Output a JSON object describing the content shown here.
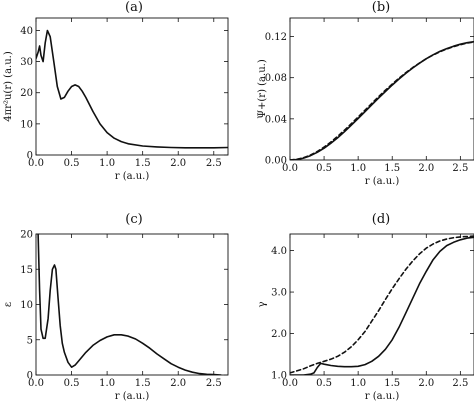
{
  "chart_data": [
    {
      "type": "line",
      "panel": "(a)",
      "title": "(a)",
      "xlabel": "r (a.u.)",
      "ylabel": "4πr²u(r) (a.u.)",
      "xlim": [
        0,
        2.7
      ],
      "ylim": [
        0,
        44
      ],
      "xticks": [
        "0.0",
        "0.5",
        "1.0",
        "1.5",
        "2.0",
        "2.5"
      ],
      "yticks": [
        "0",
        "10",
        "20",
        "30",
        "40"
      ],
      "series": [
        {
          "style": "solid",
          "x": [
            0.0,
            0.03,
            0.05,
            0.07,
            0.1,
            0.13,
            0.16,
            0.2,
            0.25,
            0.3,
            0.35,
            0.4,
            0.45,
            0.5,
            0.55,
            0.6,
            0.65,
            0.7,
            0.8,
            0.9,
            1.0,
            1.1,
            1.2,
            1.3,
            1.5,
            1.7,
            1.9,
            2.1,
            2.3,
            2.5,
            2.7
          ],
          "y": [
            31,
            33,
            35,
            32,
            30,
            36,
            40,
            38,
            30,
            22,
            18,
            18.5,
            20.5,
            22,
            22.5,
            22,
            20.5,
            18.5,
            14,
            10,
            7.2,
            5.4,
            4.3,
            3.6,
            2.9,
            2.6,
            2.4,
            2.3,
            2.3,
            2.3,
            2.4
          ]
        }
      ]
    },
    {
      "type": "line",
      "panel": "(b)",
      "title": "(b)",
      "xlabel": "r (a.u.)",
      "ylabel": "Ψ+(r) (a.u.)",
      "xlim": [
        0,
        2.7
      ],
      "ylim": [
        0,
        0.138
      ],
      "xticks": [
        "0.0",
        "0.5",
        "1.0",
        "1.5",
        "2.0",
        "2.5"
      ],
      "yticks": [
        "0.00",
        "0.04",
        "0.08",
        "0.12"
      ],
      "series": [
        {
          "style": "solid",
          "x": [
            0.0,
            0.1,
            0.2,
            0.3,
            0.4,
            0.5,
            0.6,
            0.7,
            0.8,
            0.9,
            1.0,
            1.1,
            1.2,
            1.3,
            1.4,
            1.5,
            1.6,
            1.7,
            1.8,
            1.9,
            2.0,
            2.1,
            2.2,
            2.3,
            2.4,
            2.5,
            2.6,
            2.7
          ],
          "y": [
            0.0,
            0.0005,
            0.0018,
            0.0042,
            0.0075,
            0.0115,
            0.0163,
            0.0216,
            0.0275,
            0.0338,
            0.0403,
            0.0469,
            0.0536,
            0.0602,
            0.0666,
            0.0728,
            0.0787,
            0.0843,
            0.0894,
            0.0941,
            0.0984,
            0.1022,
            0.1055,
            0.1083,
            0.1106,
            0.1125,
            0.114,
            0.115
          ]
        },
        {
          "style": "dashed",
          "x": [
            0.0,
            0.1,
            0.2,
            0.3,
            0.4,
            0.5,
            0.6,
            0.7,
            0.8,
            0.9,
            1.0,
            1.1,
            1.2,
            1.3,
            1.4,
            1.5,
            1.6,
            1.7,
            1.8,
            1.9,
            2.0,
            2.1,
            2.2,
            2.3,
            2.4,
            2.5,
            2.6,
            2.7
          ],
          "y": [
            0.0,
            0.0007,
            0.0022,
            0.0048,
            0.0083,
            0.0125,
            0.0175,
            0.023,
            0.029,
            0.0353,
            0.0418,
            0.0484,
            0.055,
            0.0615,
            0.0678,
            0.0738,
            0.0795,
            0.0849,
            0.0898,
            0.0943,
            0.0984,
            0.102,
            0.1052,
            0.1079,
            0.1102,
            0.1121,
            0.1136,
            0.1147
          ]
        }
      ]
    },
    {
      "type": "line",
      "panel": "(c)",
      "title": "(c)",
      "xlabel": "r (a.u.)",
      "ylabel": "ε",
      "xlim": [
        0,
        2.7
      ],
      "ylim": [
        0,
        20
      ],
      "xticks": [
        "0.0",
        "0.5",
        "1.0",
        "1.5",
        "2.0",
        "2.5"
      ],
      "yticks": [
        "0",
        "5",
        "10",
        "15",
        "20"
      ],
      "series": [
        {
          "style": "solid",
          "x": [
            0.03,
            0.05,
            0.07,
            0.1,
            0.13,
            0.17,
            0.2,
            0.23,
            0.26,
            0.28,
            0.31,
            0.34,
            0.37,
            0.4,
            0.45,
            0.5,
            0.55,
            0.6,
            0.7,
            0.8,
            0.9,
            1.0,
            1.1,
            1.2,
            1.3,
            1.4,
            1.5,
            1.6,
            1.7,
            1.8,
            1.9,
            2.0,
            2.1,
            2.2,
            2.3,
            2.4,
            2.5,
            2.6
          ],
          "y": [
            20,
            12,
            6.5,
            5.2,
            5.2,
            8,
            12,
            15,
            15.6,
            15,
            11,
            7,
            4.5,
            3.2,
            1.8,
            1.1,
            1.4,
            2.0,
            3.2,
            4.2,
            4.9,
            5.4,
            5.7,
            5.7,
            5.5,
            5.1,
            4.5,
            3.8,
            3.0,
            2.3,
            1.6,
            1.1,
            0.7,
            0.4,
            0.2,
            0.1,
            0.05,
            0.0
          ]
        }
      ]
    },
    {
      "type": "line",
      "panel": "(d)",
      "title": "(d)",
      "xlabel": "r (a.u.)",
      "ylabel": "γ",
      "xlim": [
        0,
        2.7
      ],
      "ylim": [
        1.0,
        4.4
      ],
      "xticks": [
        "0.0",
        "0.5",
        "1.0",
        "1.5",
        "2.0",
        "2.5"
      ],
      "yticks": [
        "1.0",
        "2.0",
        "3.0",
        "4.0"
      ],
      "series": [
        {
          "style": "solid",
          "x": [
            0.0,
            0.1,
            0.2,
            0.3,
            0.35,
            0.4,
            0.45,
            0.5,
            0.6,
            0.7,
            0.8,
            0.9,
            1.0,
            1.1,
            1.2,
            1.3,
            1.4,
            1.5,
            1.6,
            1.7,
            1.8,
            1.9,
            2.0,
            2.1,
            2.2,
            2.3,
            2.4,
            2.5,
            2.6,
            2.7
          ],
          "y": [
            1.0,
            1.0,
            1.0,
            1.02,
            1.05,
            1.18,
            1.28,
            1.26,
            1.23,
            1.21,
            1.2,
            1.2,
            1.21,
            1.25,
            1.33,
            1.45,
            1.62,
            1.85,
            2.15,
            2.5,
            2.85,
            3.2,
            3.5,
            3.78,
            3.98,
            4.12,
            4.2,
            4.26,
            4.3,
            4.32
          ]
        },
        {
          "style": "dashed",
          "x": [
            0.0,
            0.1,
            0.2,
            0.3,
            0.4,
            0.5,
            0.6,
            0.7,
            0.8,
            0.9,
            1.0,
            1.1,
            1.2,
            1.3,
            1.4,
            1.5,
            1.6,
            1.7,
            1.8,
            1.9,
            2.0,
            2.1,
            2.2,
            2.3,
            2.4,
            2.5,
            2.6,
            2.7
          ],
          "y": [
            1.05,
            1.1,
            1.15,
            1.22,
            1.28,
            1.33,
            1.38,
            1.45,
            1.55,
            1.68,
            1.85,
            2.05,
            2.3,
            2.55,
            2.82,
            3.08,
            3.32,
            3.55,
            3.75,
            3.92,
            4.06,
            4.16,
            4.23,
            4.28,
            4.31,
            4.33,
            4.34,
            4.35
          ]
        }
      ]
    }
  ]
}
